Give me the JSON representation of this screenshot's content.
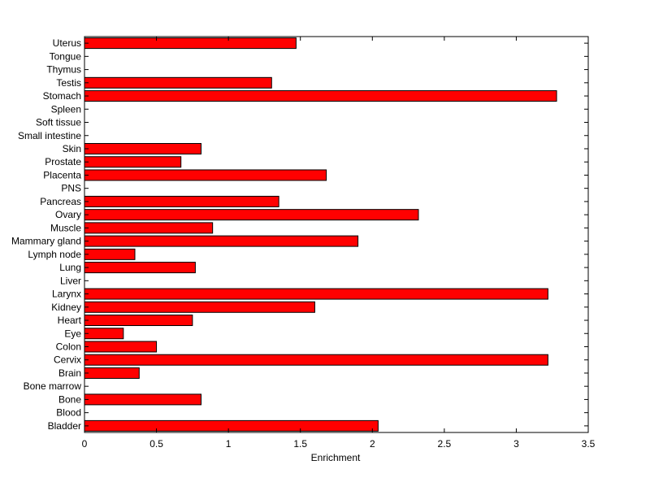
{
  "chart_data": {
    "type": "bar",
    "orientation": "horizontal",
    "categories": [
      "Bladder",
      "Blood",
      "Bone",
      "Bone marrow",
      "Brain",
      "Cervix",
      "Colon",
      "Eye",
      "Heart",
      "Kidney",
      "Larynx",
      "Liver",
      "Lung",
      "Lymph node",
      "Mammary gland",
      "Muscle",
      "Ovary",
      "Pancreas",
      "PNS",
      "Placenta",
      "Prostate",
      "Skin",
      "Small intestine",
      "Soft tissue",
      "Spleen",
      "Stomach",
      "Testis",
      "Thymus",
      "Tongue",
      "Uterus"
    ],
    "values": [
      2.04,
      0,
      0.81,
      0,
      0.38,
      3.22,
      0.5,
      0.27,
      0.75,
      1.6,
      3.22,
      0,
      0.77,
      0.35,
      1.9,
      0.89,
      2.32,
      1.35,
      0,
      1.68,
      0.67,
      0.81,
      0,
      0,
      0,
      3.28,
      1.3,
      0,
      0,
      1.47
    ],
    "xlabel": "Enrichment",
    "ylabel": "",
    "title": "",
    "xlim": [
      0,
      3.5
    ],
    "xticks": [
      "0",
      "0.5",
      "1",
      "1.5",
      "2",
      "2.5",
      "3",
      "3.5"
    ],
    "grid": false,
    "bar_color": "#ff0000",
    "edge_color": "#000000"
  }
}
